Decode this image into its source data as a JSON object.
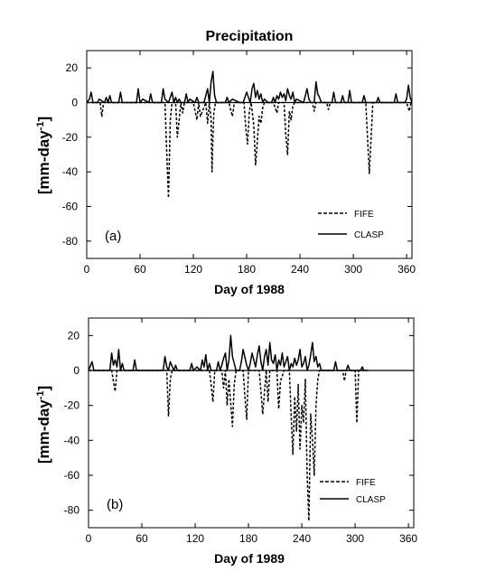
{
  "title": "Precipitation",
  "ylabel": "[mm-day",
  "ylabel_sup": "-1",
  "ylabel_end": "]",
  "chart_data": [
    {
      "type": "line",
      "panel_label": "(a)",
      "xlabel": "Day of 1988",
      "xlim": [
        0,
        366
      ],
      "ylim": [
        -90,
        30
      ],
      "xticks": [
        0,
        60,
        120,
        180,
        240,
        300,
        360
      ],
      "yticks": [
        -80,
        -60,
        -40,
        -20,
        0,
        20
      ],
      "legend_position": "bottom-right",
      "series": [
        {
          "name": "FIFE",
          "style": "dashed",
          "x": [
            0,
            15,
            17,
            19,
            21,
            30,
            60,
            88,
            90,
            92,
            94,
            96,
            98,
            100,
            102,
            106,
            108,
            110,
            112,
            120,
            124,
            126,
            128,
            134,
            136,
            138,
            140,
            141,
            142,
            143,
            145,
            150,
            160,
            162,
            164,
            166,
            170,
            177,
            179,
            181,
            183,
            185,
            188,
            190,
            192,
            194,
            196,
            198,
            200,
            204,
            210,
            214,
            216,
            222,
            224,
            226,
            228,
            230,
            232,
            234,
            240,
            254,
            256,
            258,
            270,
            272,
            274,
            290,
            314,
            316,
            318,
            320,
            322,
            324,
            340,
            360,
            363,
            365
          ],
          "y": [
            0,
            0,
            -8,
            0,
            0,
            0,
            0,
            0,
            -28,
            -55,
            -10,
            0,
            0,
            0,
            -20,
            0,
            -6,
            0,
            0,
            0,
            -10,
            0,
            -8,
            0,
            -12,
            0,
            -10,
            -40,
            -20,
            -6,
            0,
            0,
            0,
            -4,
            -8,
            0,
            0,
            0,
            -15,
            -24,
            -5,
            0,
            -13,
            -36,
            -22,
            -8,
            -12,
            -3,
            0,
            0,
            0,
            -6,
            0,
            0,
            -18,
            -30,
            -5,
            -10,
            -2,
            0,
            0,
            0,
            -5,
            0,
            0,
            -4,
            0,
            0,
            0,
            -20,
            -41,
            -20,
            0,
            0,
            0,
            0,
            -5,
            0
          ]
        },
        {
          "name": "CLASP",
          "style": "solid",
          "x": [
            0,
            3,
            5,
            7,
            12,
            14,
            20,
            22,
            24,
            26,
            28,
            36,
            38,
            40,
            56,
            58,
            60,
            63,
            70,
            72,
            74,
            84,
            86,
            88,
            92,
            96,
            98,
            100,
            102,
            104,
            106,
            110,
            112,
            114,
            116,
            122,
            124,
            126,
            132,
            134,
            136,
            138,
            140,
            142,
            143,
            144,
            146,
            150,
            156,
            158,
            160,
            164,
            172,
            176,
            178,
            180,
            184,
            186,
            188,
            190,
            192,
            194,
            196,
            198,
            200,
            204,
            208,
            210,
            212,
            214,
            216,
            218,
            220,
            222,
            224,
            226,
            228,
            230,
            232,
            234,
            236,
            244,
            246,
            248,
            250,
            252,
            256,
            258,
            260,
            262,
            264,
            268,
            276,
            278,
            280,
            286,
            288,
            290,
            294,
            296,
            298,
            310,
            312,
            314,
            326,
            328,
            330,
            346,
            348,
            350,
            358,
            360,
            362,
            364,
            366
          ],
          "y": [
            0,
            2,
            6,
            0,
            0,
            2,
            0,
            3,
            0,
            4,
            0,
            0,
            6,
            0,
            0,
            8,
            0,
            2,
            0,
            5,
            0,
            0,
            8,
            2,
            0,
            6,
            0,
            3,
            0,
            2,
            0,
            0,
            5,
            0,
            2,
            0,
            3,
            0,
            0,
            4,
            8,
            0,
            12,
            18,
            10,
            4,
            0,
            0,
            0,
            3,
            0,
            2,
            0,
            0,
            3,
            6,
            0,
            8,
            11,
            3,
            7,
            2,
            5,
            0,
            2,
            0,
            0,
            3,
            0,
            4,
            2,
            6,
            3,
            5,
            1,
            8,
            4,
            2,
            6,
            0,
            2,
            0,
            4,
            8,
            2,
            0,
            0,
            12,
            5,
            3,
            0,
            0,
            0,
            6,
            0,
            0,
            4,
            0,
            0,
            7,
            0,
            0,
            4,
            0,
            0,
            3,
            0,
            0,
            5,
            0,
            0,
            2,
            10,
            3,
            0
          ]
        }
      ]
    },
    {
      "type": "line",
      "panel_label": "(b)",
      "xlabel": "Day of 1989",
      "xlim": [
        0,
        366
      ],
      "ylim": [
        -90,
        30
      ],
      "xticks": [
        0,
        60,
        120,
        180,
        240,
        300,
        360
      ],
      "yticks": [
        -80,
        -60,
        -40,
        -20,
        0,
        20
      ],
      "legend_position": "bottom-right",
      "series": [
        {
          "name": "FIFE",
          "style": "dashed",
          "x": [
            0,
            26,
            28,
            30,
            32,
            40,
            88,
            90,
            92,
            94,
            100,
            136,
            138,
            140,
            142,
            150,
            152,
            154,
            156,
            158,
            162,
            164,
            166,
            174,
            176,
            178,
            180,
            192,
            194,
            196,
            200,
            202,
            204,
            212,
            214,
            216,
            220,
            226,
            228,
            230,
            232,
            234,
            236,
            238,
            240,
            242,
            244,
            246,
            248,
            250,
            252,
            254,
            256,
            258,
            260,
            266,
            286,
            288,
            290,
            300,
            302,
            304,
            313
          ],
          "y": [
            0,
            0,
            -6,
            -12,
            0,
            0,
            0,
            -26,
            -5,
            0,
            0,
            0,
            -8,
            -18,
            0,
            0,
            -10,
            0,
            -20,
            -5,
            -32,
            -8,
            0,
            0,
            -15,
            -28,
            0,
            0,
            -12,
            -25,
            0,
            -18,
            0,
            0,
            -22,
            -6,
            0,
            0,
            -26,
            -48,
            -15,
            -35,
            -8,
            -45,
            -20,
            -30,
            -5,
            -60,
            -86,
            -25,
            -40,
            -60,
            -20,
            -5,
            0,
            0,
            0,
            -6,
            0,
            0,
            -30,
            0,
            0
          ]
        },
        {
          "name": "CLASP",
          "style": "solid",
          "x": [
            0,
            4,
            6,
            8,
            24,
            26,
            28,
            30,
            32,
            34,
            36,
            38,
            40,
            50,
            52,
            54,
            60,
            84,
            86,
            88,
            90,
            92,
            96,
            98,
            100,
            114,
            116,
            118,
            122,
            126,
            128,
            130,
            132,
            134,
            136,
            138,
            144,
            146,
            148,
            150,
            152,
            154,
            156,
            158,
            160,
            162,
            164,
            166,
            170,
            172,
            174,
            178,
            180,
            182,
            184,
            186,
            188,
            190,
            192,
            194,
            196,
            198,
            200,
            202,
            204,
            206,
            208,
            210,
            212,
            214,
            216,
            218,
            220,
            222,
            224,
            226,
            228,
            230,
            232,
            234,
            236,
            238,
            240,
            242,
            244,
            246,
            248,
            250,
            252,
            254,
            256,
            258,
            260,
            262,
            266,
            276,
            278,
            280,
            290,
            292,
            294,
            306,
            308,
            310,
            315
          ],
          "y": [
            0,
            5,
            0,
            0,
            0,
            10,
            3,
            6,
            2,
            12,
            0,
            4,
            0,
            0,
            6,
            0,
            0,
            0,
            8,
            2,
            0,
            5,
            0,
            3,
            0,
            0,
            4,
            0,
            2,
            0,
            6,
            2,
            9,
            0,
            4,
            0,
            0,
            5,
            0,
            3,
            7,
            10,
            0,
            6,
            20,
            8,
            4,
            0,
            0,
            5,
            12,
            3,
            0,
            4,
            10,
            6,
            2,
            9,
            14,
            5,
            0,
            8,
            12,
            3,
            16,
            6,
            4,
            9,
            0,
            6,
            3,
            10,
            2,
            5,
            8,
            0,
            4,
            2,
            7,
            3,
            6,
            12,
            2,
            4,
            8,
            0,
            3,
            9,
            16,
            5,
            8,
            2,
            4,
            0,
            0,
            0,
            5,
            0,
            0,
            3,
            0,
            0,
            2,
            0,
            0
          ]
        }
      ]
    }
  ]
}
